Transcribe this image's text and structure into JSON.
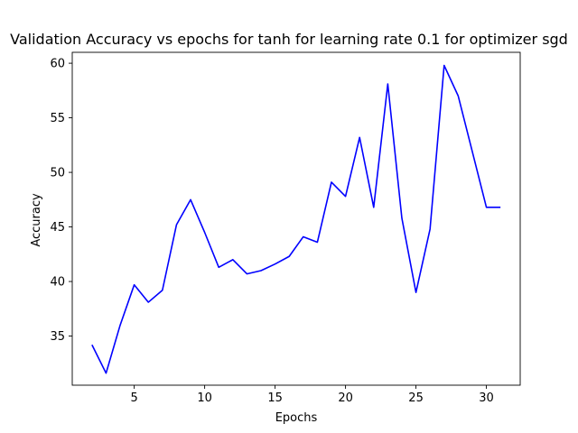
{
  "chart_data": {
    "type": "line",
    "title": "Validation Accuracy vs epochs for tanh for learning rate 0.1 for optimizer sgd",
    "xlabel": "Epochs",
    "ylabel": "Accuracy",
    "xlim": [
      0.6,
      32.4
    ],
    "ylim": [
      30.5,
      61.0
    ],
    "xticks": [
      5,
      10,
      15,
      20,
      25,
      30
    ],
    "yticks": [
      35,
      40,
      45,
      50,
      55,
      60
    ],
    "grid": false,
    "series": [
      {
        "color": "#0000ff",
        "x": [
          2,
          3,
          4,
          5,
          6,
          7,
          8,
          9,
          10,
          11,
          12,
          13,
          14,
          15,
          16,
          17,
          18,
          19,
          20,
          21,
          22,
          23,
          24,
          25,
          26,
          27,
          28,
          29,
          30,
          31
        ],
        "y": [
          34.2,
          31.6,
          36.0,
          39.7,
          38.1,
          39.2,
          45.2,
          47.5,
          44.5,
          41.3,
          42.0,
          40.7,
          41.0,
          41.6,
          42.3,
          44.1,
          43.6,
          49.1,
          47.8,
          53.2,
          46.8,
          58.1,
          45.8,
          39.0,
          44.8,
          59.8,
          57.0,
          51.9,
          46.8,
          46.8
        ]
      }
    ]
  }
}
